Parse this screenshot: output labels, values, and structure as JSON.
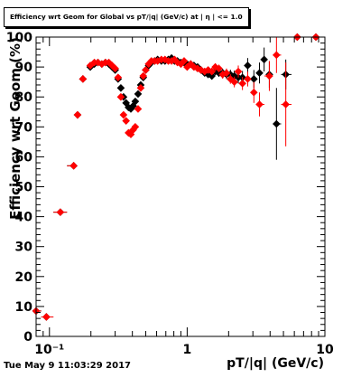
{
  "chart_data": {
    "type": "scatter",
    "title": "Efficiency wrt Geom for Global vs pT/|q| (GeV/c) at | η | <= 1.0",
    "xlabel": "pT/|q| (GeV/c)",
    "ylabel": "Efficiency wrt Geom (%)",
    "xscale": "log",
    "xlim": [
      0.08,
      10
    ],
    "ylim": [
      0,
      100
    ],
    "x_ticks": [
      {
        "v": 0.1,
        "label": "10⁻¹"
      },
      {
        "v": 1,
        "label": "1"
      },
      {
        "v": 10,
        "label": "10"
      }
    ],
    "y_ticks": [
      0,
      10,
      20,
      30,
      40,
      50,
      60,
      70,
      80,
      90,
      100
    ],
    "grid": false,
    "timestamp": "Tue May  9 11:03:29 2017",
    "series": [
      {
        "color": "#000000",
        "points": [
          [
            0.08,
            8.5,
            0.3
          ],
          [
            0.095,
            6.5,
            0.3
          ],
          [
            0.12,
            41.5,
            0.5
          ],
          [
            0.15,
            57,
            0.5
          ],
          [
            0.16,
            74,
            0.6
          ],
          [
            0.175,
            86,
            0.5
          ],
          [
            0.198,
            90,
            0.5
          ],
          [
            0.212,
            91,
            0.5
          ],
          [
            0.225,
            91.5,
            0.5
          ],
          [
            0.24,
            91,
            0.5
          ],
          [
            0.255,
            91.5,
            0.5
          ],
          [
            0.27,
            91,
            0.5
          ],
          [
            0.285,
            90,
            0.5
          ],
          [
            0.3,
            89,
            0.6
          ],
          [
            0.315,
            86,
            0.6
          ],
          [
            0.33,
            83,
            0.7
          ],
          [
            0.345,
            80,
            0.7
          ],
          [
            0.36,
            78,
            0.7
          ],
          [
            0.375,
            76.5,
            0.7
          ],
          [
            0.39,
            76,
            0.8
          ],
          [
            0.405,
            77,
            0.8
          ],
          [
            0.42,
            78.5,
            0.8
          ],
          [
            0.44,
            81,
            0.7
          ],
          [
            0.46,
            84,
            0.7
          ],
          [
            0.48,
            86.5,
            0.7
          ],
          [
            0.5,
            89,
            0.6
          ],
          [
            0.525,
            90.5,
            0.6
          ],
          [
            0.55,
            91.5,
            0.6
          ],
          [
            0.58,
            92,
            0.6
          ],
          [
            0.61,
            92.5,
            0.6
          ],
          [
            0.65,
            92,
            0.6
          ],
          [
            0.69,
            92,
            0.6
          ],
          [
            0.73,
            92.5,
            0.6
          ],
          [
            0.77,
            93,
            0.6
          ],
          [
            0.81,
            92,
            0.6
          ],
          [
            0.85,
            92,
            0.7
          ],
          [
            0.9,
            91.5,
            0.7
          ],
          [
            0.95,
            91.5,
            0.7
          ],
          [
            1.0,
            91,
            0.8
          ],
          [
            1.06,
            91,
            0.8
          ],
          [
            1.12,
            90.5,
            0.9
          ],
          [
            1.19,
            90,
            0.9
          ],
          [
            1.26,
            89,
            1.0
          ],
          [
            1.34,
            88,
            1.0
          ],
          [
            1.42,
            87.5,
            1.1
          ],
          [
            1.51,
            87,
            1.2
          ],
          [
            1.6,
            88.5,
            1.2
          ],
          [
            1.7,
            88,
            1.3
          ],
          [
            1.81,
            88,
            1.4
          ],
          [
            1.93,
            87.5,
            1.5
          ],
          [
            2.06,
            87.5,
            1.6
          ],
          [
            2.2,
            87,
            1.8
          ],
          [
            2.35,
            86.5,
            2.0
          ],
          [
            2.52,
            86.5,
            2.2
          ],
          [
            2.75,
            90.5,
            2.5
          ],
          [
            3.05,
            86,
            3.0
          ],
          [
            3.35,
            88,
            3.5
          ],
          [
            3.62,
            92.5,
            4.0
          ],
          [
            3.95,
            87.5,
            4.5
          ],
          [
            4.45,
            71,
            12
          ],
          [
            5.2,
            87.5,
            5.0
          ],
          [
            6.3,
            100,
            0.5
          ],
          [
            8.6,
            100,
            0.5
          ]
        ]
      },
      {
        "color": "#ff0000",
        "points": [
          [
            0.08,
            8.5,
            0.3
          ],
          [
            0.095,
            6.5,
            0.3
          ],
          [
            0.12,
            41.5,
            0.5
          ],
          [
            0.15,
            57,
            0.5
          ],
          [
            0.16,
            74,
            0.6
          ],
          [
            0.175,
            86,
            0.5
          ],
          [
            0.198,
            90.5,
            0.5
          ],
          [
            0.212,
            91.5,
            0.5
          ],
          [
            0.225,
            91.5,
            0.5
          ],
          [
            0.24,
            91,
            0.5
          ],
          [
            0.255,
            91.5,
            0.5
          ],
          [
            0.27,
            91.5,
            0.5
          ],
          [
            0.285,
            90.5,
            0.5
          ],
          [
            0.3,
            89.5,
            0.6
          ],
          [
            0.315,
            86.5,
            0.6
          ],
          [
            0.33,
            80,
            0.7
          ],
          [
            0.345,
            74,
            0.7
          ],
          [
            0.36,
            72,
            0.7
          ],
          [
            0.375,
            68,
            0.7
          ],
          [
            0.39,
            67.5,
            0.8
          ],
          [
            0.405,
            69,
            0.8
          ],
          [
            0.42,
            70,
            0.8
          ],
          [
            0.44,
            76,
            0.7
          ],
          [
            0.46,
            83,
            0.7
          ],
          [
            0.48,
            87,
            0.7
          ],
          [
            0.5,
            89,
            0.6
          ],
          [
            0.525,
            91,
            0.6
          ],
          [
            0.55,
            92,
            0.6
          ],
          [
            0.58,
            92,
            0.6
          ],
          [
            0.61,
            92,
            0.6
          ],
          [
            0.65,
            92.5,
            0.6
          ],
          [
            0.69,
            92.5,
            0.6
          ],
          [
            0.73,
            92,
            0.6
          ],
          [
            0.77,
            92,
            0.6
          ],
          [
            0.81,
            92.5,
            0.6
          ],
          [
            0.85,
            91.5,
            0.7
          ],
          [
            0.9,
            91,
            0.7
          ],
          [
            0.95,
            92,
            0.7
          ],
          [
            1.0,
            90,
            0.8
          ],
          [
            1.06,
            91,
            0.8
          ],
          [
            1.12,
            90,
            0.9
          ],
          [
            1.19,
            89.5,
            0.9
          ],
          [
            1.26,
            89,
            1.0
          ],
          [
            1.34,
            88.5,
            1.0
          ],
          [
            1.42,
            89,
            1.1
          ],
          [
            1.51,
            88.5,
            1.2
          ],
          [
            1.6,
            90,
            1.2
          ],
          [
            1.7,
            89.5,
            1.3
          ],
          [
            1.81,
            87.5,
            1.4
          ],
          [
            1.93,
            88,
            1.5
          ],
          [
            2.06,
            86,
            1.6
          ],
          [
            2.2,
            85,
            1.8
          ],
          [
            2.35,
            88.5,
            2.0
          ],
          [
            2.52,
            84.5,
            2.2
          ],
          [
            2.75,
            86,
            2.5
          ],
          [
            3.05,
            81.5,
            3.5
          ],
          [
            3.35,
            77.5,
            4.0
          ],
          [
            3.95,
            87,
            5.0
          ],
          [
            4.45,
            94,
            6.0
          ],
          [
            5.2,
            77.5,
            14
          ],
          [
            6.3,
            100,
            0.5
          ],
          [
            8.6,
            100,
            0.5
          ]
        ]
      }
    ]
  }
}
